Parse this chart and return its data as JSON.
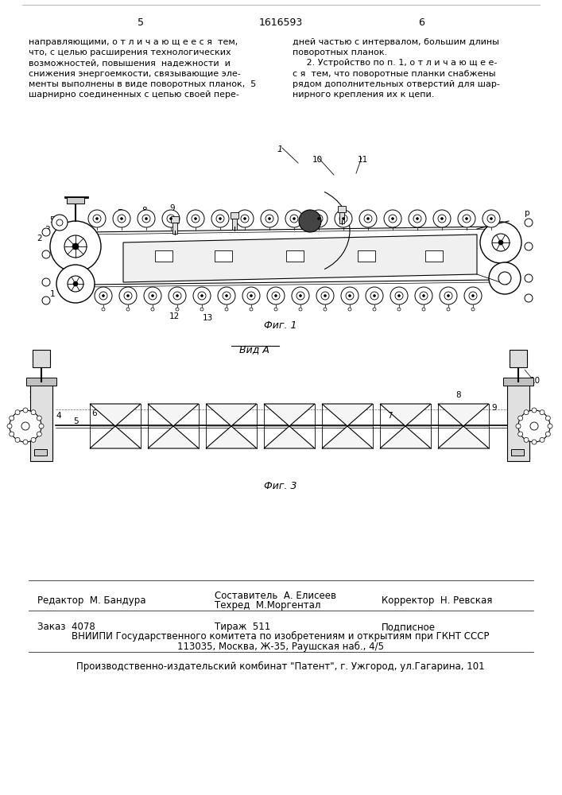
{
  "page_number_left": "5",
  "page_number_center": "1616593",
  "page_number_right": "6",
  "col1_text": [
    "направляющими, о т л и ч а ю щ е е с я  тем,",
    "что, с целью расширения технологических",
    "возможностей, повышения  надежности  и",
    "снижения энергоемкости, связывающие эле-",
    "менты выполнены в виде поворотных планок,  5",
    "шарнирно соединенных с цепью своей пере-"
  ],
  "col2_text": [
    "дней частью с интервалом, большим длины",
    "поворотных планок.",
    "     2. Устройство по п. 1, о т л и ч а ю щ е е-",
    "с я  тем, что поворотные планки снабжены",
    "рядом дополнительных отверстий для шар-",
    "нирного крепления их к цепи."
  ],
  "fig1_label": "Фиг. 1",
  "fig3_label": "Фиг. 3",
  "vid_label": "Вид А",
  "editor_label": "Редактор",
  "editor_name": "М. Бандура",
  "composer_label": "Составитель",
  "composer_name": "А. Елисеев",
  "techred_label": "Техред",
  "techred_name": "М.Моргентал",
  "corrector_label": "Корректор",
  "corrector_name": "Н. Ревская",
  "order_text": "Заказ  4078",
  "tirazh_text": "Тираж  511",
  "podpisno_text": "Подписное",
  "vniiipi_line": "ВНИИПИ Государственного комитета по изобретениям и открытиям при ГКНТ СССР",
  "address_line": "113035, Москва, Ж-35, Раушская наб., 4/5",
  "factory_line": "Производственно-издательский комбинат \"Патент\", г. Ужгород, ул.Гагарина, 101",
  "bg_color": "#ffffff"
}
